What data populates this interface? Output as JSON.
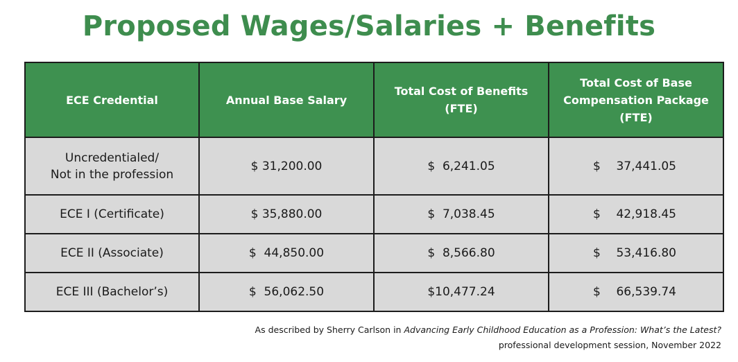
{
  "title": "Proposed Wages/Salaries + Benefits",
  "table": {
    "headers": [
      [
        "ECE Credential"
      ],
      [
        "Annual Base Salary"
      ],
      [
        "Total Cost of Benefits",
        "(FTE)"
      ],
      [
        "Total Cost of Base",
        "Compensation Package",
        "(FTE)"
      ]
    ],
    "rows": [
      {
        "credential": [
          "Uncredentialed/",
          "Not in the profession"
        ],
        "salary": "$ 31,200.00",
        "benefits": "$  6,241.05",
        "package_symbol": "$",
        "package_value": "37,441.05"
      },
      {
        "credential": [
          "ECE I (Certificate)"
        ],
        "salary": "$ 35,880.00",
        "benefits": "$  7,038.45",
        "package_symbol": "$",
        "package_value": "42,918.45"
      },
      {
        "credential": [
          "ECE II (Associate)"
        ],
        "salary": "$  44,850.00",
        "benefits": "$  8,566.80",
        "package_symbol": "$",
        "package_value": "53,416.80"
      },
      {
        "credential": [
          "ECE III (Bachelor’s)"
        ],
        "salary": "$  56,062.50",
        "benefits": "$10,477.24",
        "package_symbol": "$",
        "package_value": "66,539.74"
      }
    ]
  },
  "footnote": {
    "prefix": "As described by Sherry Carlson in ",
    "italic": "Advancing Early Childhood Education as a Profession: What’s the Latest?",
    "line2": "professional development session, November 2022"
  }
}
